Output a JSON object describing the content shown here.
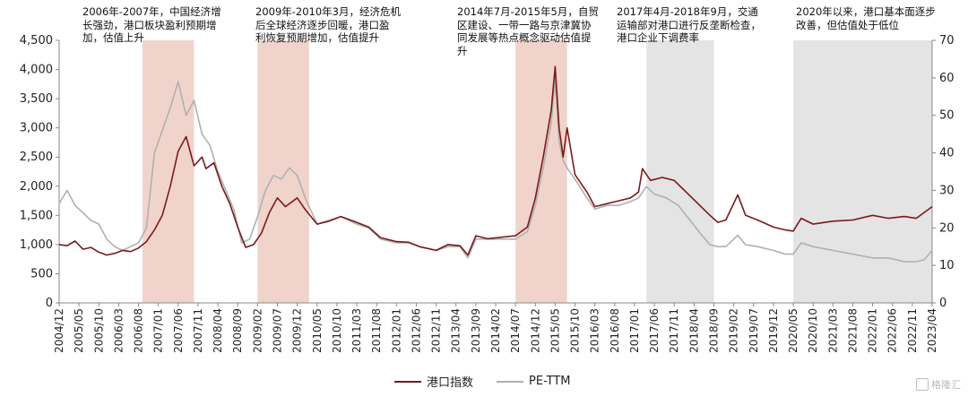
{
  "chart_data": {
    "type": "line",
    "y_left_lim": [
      0,
      4500
    ],
    "y_left_ticks": [
      "0",
      "500",
      "1,000",
      "1,500",
      "2,000",
      "2,500",
      "3,000",
      "3,500",
      "4,000",
      "4,500"
    ],
    "y_right_lim": [
      0,
      70
    ],
    "y_right_ticks": [
      "0",
      "10",
      "20",
      "30",
      "40",
      "50",
      "60",
      "70"
    ],
    "x_start": "2004/12",
    "x_end": "2023/04",
    "x_tick_labels": [
      "2004/12",
      "2005/05",
      "2005/10",
      "2006/03",
      "2006/08",
      "2007/01",
      "2007/06",
      "2007/11",
      "2008/04",
      "2008/09",
      "2009/02",
      "2009/07",
      "2009/12",
      "2010/05",
      "2010/10",
      "2011/03",
      "2011/08",
      "2012/01",
      "2012/06",
      "2012/11",
      "2013/04",
      "2013/09",
      "2014/02",
      "2014/07",
      "2014/12",
      "2015/05",
      "2015/10",
      "2016/03",
      "2016/08",
      "2017/01",
      "2017/06",
      "2017/11",
      "2018/04",
      "2018/09",
      "2019/02",
      "2019/07",
      "2019/12",
      "2020/05",
      "2020/10",
      "2021/03",
      "2021/08",
      "2022/01",
      "2022/06",
      "2022/11",
      "2023/04"
    ],
    "shaded_periods": [
      {
        "start": "2006/09",
        "end": "2007/10",
        "color": "#f0d4cc"
      },
      {
        "start": "2009/02",
        "end": "2010/03",
        "color": "#f0d4cc"
      },
      {
        "start": "2014/07",
        "end": "2015/08",
        "color": "#f0d4cc"
      },
      {
        "start": "2017/04",
        "end": "2018/09",
        "color": "#e4e4e4"
      },
      {
        "start": "2020/05",
        "end": "2023/04",
        "color": "#e4e4e4"
      }
    ],
    "series": [
      {
        "name": "港口指数",
        "axis": "left",
        "color": "#7a1a1a",
        "points": [
          [
            "2004/12",
            1000
          ],
          [
            "2005/02",
            980
          ],
          [
            "2005/04",
            1060
          ],
          [
            "2005/06",
            920
          ],
          [
            "2005/08",
            950
          ],
          [
            "2005/10",
            870
          ],
          [
            "2005/12",
            820
          ],
          [
            "2006/02",
            850
          ],
          [
            "2006/04",
            900
          ],
          [
            "2006/06",
            880
          ],
          [
            "2006/08",
            940
          ],
          [
            "2006/10",
            1050
          ],
          [
            "2006/12",
            1250
          ],
          [
            "2007/02",
            1500
          ],
          [
            "2007/04",
            2000
          ],
          [
            "2007/06",
            2600
          ],
          [
            "2007/08",
            2850
          ],
          [
            "2007/10",
            2350
          ],
          [
            "2007/12",
            2500
          ],
          [
            "2008/01",
            2300
          ],
          [
            "2008/03",
            2400
          ],
          [
            "2008/05",
            2000
          ],
          [
            "2008/07",
            1700
          ],
          [
            "2008/09",
            1300
          ],
          [
            "2008/11",
            950
          ],
          [
            "2009/01",
            1000
          ],
          [
            "2009/03",
            1200
          ],
          [
            "2009/05",
            1550
          ],
          [
            "2009/07",
            1800
          ],
          [
            "2009/09",
            1650
          ],
          [
            "2009/12",
            1800
          ],
          [
            "2010/02",
            1600
          ],
          [
            "2010/05",
            1350
          ],
          [
            "2010/08",
            1400
          ],
          [
            "2010/11",
            1480
          ],
          [
            "2011/03",
            1380
          ],
          [
            "2011/06",
            1300
          ],
          [
            "2011/09",
            1120
          ],
          [
            "2012/01",
            1050
          ],
          [
            "2012/04",
            1040
          ],
          [
            "2012/07",
            960
          ],
          [
            "2012/11",
            900
          ],
          [
            "2013/02",
            1000
          ],
          [
            "2013/05",
            980
          ],
          [
            "2013/07",
            820
          ],
          [
            "2013/09",
            1150
          ],
          [
            "2013/12",
            1100
          ],
          [
            "2014/04",
            1130
          ],
          [
            "2014/07",
            1150
          ],
          [
            "2014/10",
            1300
          ],
          [
            "2014/12",
            1800
          ],
          [
            "2015/02",
            2500
          ],
          [
            "2015/04",
            3300
          ],
          [
            "2015/05",
            4050
          ],
          [
            "2015/06",
            3000
          ],
          [
            "2015/07",
            2500
          ],
          [
            "2015/08",
            3000
          ],
          [
            "2015/10",
            2200
          ],
          [
            "2016/01",
            1900
          ],
          [
            "2016/03",
            1650
          ],
          [
            "2016/06",
            1700
          ],
          [
            "2016/09",
            1750
          ],
          [
            "2016/12",
            1800
          ],
          [
            "2017/02",
            1900
          ],
          [
            "2017/03",
            2300
          ],
          [
            "2017/05",
            2100
          ],
          [
            "2017/08",
            2150
          ],
          [
            "2017/11",
            2100
          ],
          [
            "2018/02",
            1900
          ],
          [
            "2018/05",
            1700
          ],
          [
            "2018/08",
            1500
          ],
          [
            "2018/10",
            1380
          ],
          [
            "2018/12",
            1420
          ],
          [
            "2019/03",
            1850
          ],
          [
            "2019/05",
            1500
          ],
          [
            "2019/08",
            1420
          ],
          [
            "2019/12",
            1300
          ],
          [
            "2020/03",
            1250
          ],
          [
            "2020/05",
            1230
          ],
          [
            "2020/07",
            1450
          ],
          [
            "2020/10",
            1350
          ],
          [
            "2021/03",
            1400
          ],
          [
            "2021/08",
            1420
          ],
          [
            "2022/01",
            1500
          ],
          [
            "2022/05",
            1450
          ],
          [
            "2022/09",
            1480
          ],
          [
            "2022/12",
            1450
          ],
          [
            "2023/02",
            1550
          ],
          [
            "2023/04",
            1650
          ]
        ]
      },
      {
        "name": "PE-TTM",
        "axis": "right",
        "color": "#b0b0b0",
        "points": [
          [
            "2004/12",
            26.5
          ],
          [
            "2005/02",
            30
          ],
          [
            "2005/04",
            26
          ],
          [
            "2005/06",
            24
          ],
          [
            "2005/08",
            22
          ],
          [
            "2005/10",
            21
          ],
          [
            "2005/12",
            17
          ],
          [
            "2006/02",
            15
          ],
          [
            "2006/04",
            14
          ],
          [
            "2006/06",
            15
          ],
          [
            "2006/08",
            16
          ],
          [
            "2006/10",
            20
          ],
          [
            "2006/12",
            40
          ],
          [
            "2007/02",
            46
          ],
          [
            "2007/04",
            52
          ],
          [
            "2007/06",
            59
          ],
          [
            "2007/08",
            50
          ],
          [
            "2007/10",
            54
          ],
          [
            "2007/12",
            45
          ],
          [
            "2008/02",
            42
          ],
          [
            "2008/04",
            35
          ],
          [
            "2008/06",
            30
          ],
          [
            "2008/08",
            25
          ],
          [
            "2008/10",
            16
          ],
          [
            "2008/12",
            17
          ],
          [
            "2009/02",
            23
          ],
          [
            "2009/04",
            30
          ],
          [
            "2009/06",
            34
          ],
          [
            "2009/08",
            33
          ],
          [
            "2009/10",
            36
          ],
          [
            "2009/12",
            34
          ],
          [
            "2010/02",
            28
          ],
          [
            "2010/05",
            21
          ],
          [
            "2010/08",
            22
          ],
          [
            "2010/11",
            23
          ],
          [
            "2011/03",
            21
          ],
          [
            "2011/06",
            20
          ],
          [
            "2011/09",
            17
          ],
          [
            "2012/01",
            16
          ],
          [
            "2012/04",
            16
          ],
          [
            "2012/07",
            15
          ],
          [
            "2012/11",
            14
          ],
          [
            "2013/02",
            15
          ],
          [
            "2013/05",
            15
          ],
          [
            "2013/07",
            12
          ],
          [
            "2013/09",
            17
          ],
          [
            "2013/12",
            17
          ],
          [
            "2014/04",
            17
          ],
          [
            "2014/07",
            17
          ],
          [
            "2014/10",
            19
          ],
          [
            "2014/12",
            26
          ],
          [
            "2015/02",
            36
          ],
          [
            "2015/04",
            48
          ],
          [
            "2015/05",
            60
          ],
          [
            "2015/06",
            43
          ],
          [
            "2015/07",
            38
          ],
          [
            "2015/08",
            36
          ],
          [
            "2015/10",
            33
          ],
          [
            "2016/01",
            28
          ],
          [
            "2016/03",
            25
          ],
          [
            "2016/06",
            26
          ],
          [
            "2016/09",
            26
          ],
          [
            "2016/12",
            27
          ],
          [
            "2017/02",
            28
          ],
          [
            "2017/04",
            31
          ],
          [
            "2017/06",
            29
          ],
          [
            "2017/09",
            28
          ],
          [
            "2017/12",
            26
          ],
          [
            "2018/03",
            22
          ],
          [
            "2018/06",
            18
          ],
          [
            "2018/08",
            15.5
          ],
          [
            "2018/10",
            15
          ],
          [
            "2018/12",
            15
          ],
          [
            "2019/03",
            18
          ],
          [
            "2019/05",
            15.5
          ],
          [
            "2019/08",
            15
          ],
          [
            "2019/12",
            14
          ],
          [
            "2020/03",
            13
          ],
          [
            "2020/05",
            13
          ],
          [
            "2020/07",
            16
          ],
          [
            "2020/10",
            15
          ],
          [
            "2021/03",
            14
          ],
          [
            "2021/08",
            13
          ],
          [
            "2022/01",
            12
          ],
          [
            "2022/05",
            12
          ],
          [
            "2022/09",
            11
          ],
          [
            "2022/12",
            11
          ],
          [
            "2023/02",
            11.5
          ],
          [
            "2023/04",
            14
          ]
        ]
      }
    ],
    "annotations": [
      "2006年-2007年，中国经济增\n长强劲，港口板块盈利预期增\n加，估值上升",
      "2009年-2010年3月，经济危机\n后全球经济逐步回暖，港口盈\n利恢复预期增加，估值提升",
      "2014年7月-2015年5月，自贸\n区建设、一带一路与京津冀协\n同发展等热点概念驱动估值提\n升",
      "2017年4月-2018年9月，交通\n运输部对港口进行反垄断检查，\n港口企业下调费率",
      "2020年以来，港口基本面逐步\n改善，但估值处于低位"
    ],
    "legend": [
      "港口指数",
      "PE-TTM"
    ]
  },
  "watermark": "格隆汇"
}
